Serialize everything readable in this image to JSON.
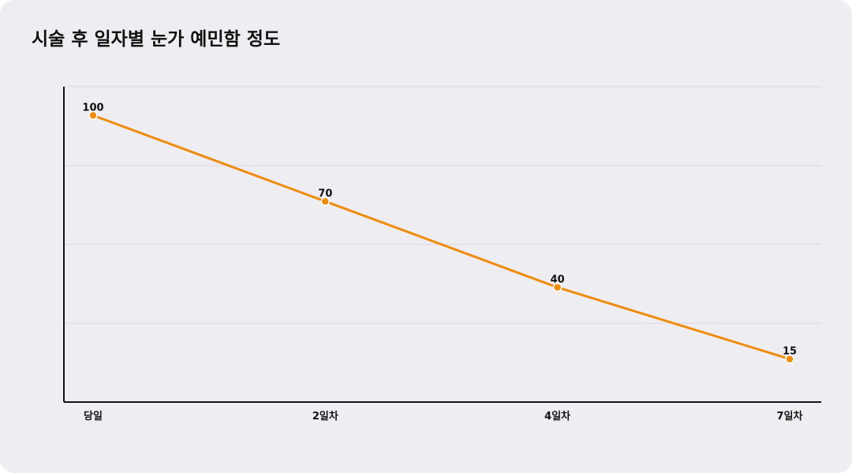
{
  "title": "시술 후 일자별 눈가 예민함 정도",
  "colors": {
    "background": "#eeedf2",
    "line": "#ef8c0e",
    "axis": "#111111",
    "grid": "#d9d8de"
  },
  "chart_data": {
    "type": "line",
    "title": "시술 후 일자별 눈가 예민함 정도",
    "categories": [
      "당일",
      "2일차",
      "4일차",
      "7일차"
    ],
    "series": [
      {
        "values": [
          100,
          70,
          40,
          15
        ]
      }
    ],
    "ylim": [
      0,
      110
    ],
    "grid": true,
    "show_data_labels": true,
    "legend": "none"
  }
}
